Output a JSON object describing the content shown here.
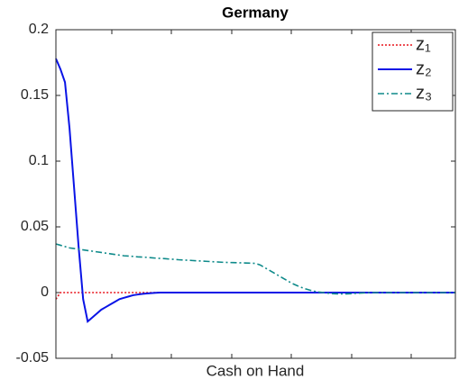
{
  "chart_data": {
    "type": "line",
    "title": "Germany",
    "xlabel": "Cash on Hand",
    "categories": [
      null,
      null,
      null,
      null,
      null,
      null,
      null,
      null,
      null,
      null,
      null,
      null,
      null,
      null,
      null,
      null,
      null,
      null,
      null,
      null,
      null,
      null,
      null,
      null,
      null,
      null,
      null,
      null,
      null,
      null,
      null,
      null,
      null,
      null,
      null,
      null,
      null,
      null,
      null,
      null,
      null,
      null,
      null,
      null,
      null,
      null,
      null,
      null,
      null,
      null,
      null,
      null,
      null,
      null,
      null,
      null,
      null,
      null,
      null,
      null,
      null,
      null,
      null,
      null,
      null,
      null,
      null,
      null,
      null,
      null,
      null,
      null,
      null,
      null,
      null,
      null,
      null,
      null,
      null,
      null,
      null,
      null,
      null,
      null,
      null,
      null,
      null,
      null,
      null
    ],
    "series": [
      {
        "name": "z₁",
        "color": "#e8141c",
        "dash": "dotted",
        "values": [
          -0.005,
          0,
          0,
          0,
          0,
          0,
          0,
          0,
          0,
          0,
          0,
          0,
          0,
          0,
          0,
          0,
          0,
          0,
          0,
          0,
          0,
          0,
          0,
          0,
          0,
          0,
          0,
          0,
          0,
          0,
          0,
          0,
          0,
          0,
          0,
          0,
          0,
          0,
          0,
          0,
          0,
          0,
          0,
          0,
          0,
          0,
          0,
          0,
          0,
          0,
          0,
          0,
          0,
          0,
          0,
          0,
          0,
          0,
          0,
          0,
          0,
          0,
          0,
          0,
          0,
          0,
          0,
          0,
          0,
          0,
          0,
          0,
          0,
          0,
          0,
          0,
          0,
          0,
          0,
          0,
          0,
          0,
          0,
          0,
          0,
          0,
          0,
          0,
          0
        ]
      },
      {
        "name": "z₂",
        "color": "#0a14e6",
        "dash": "solid",
        "values": [
          0.178,
          0.17,
          0.16,
          0.125,
          0.08,
          0.035,
          -0.005,
          -0.022,
          -0.019,
          -0.016,
          -0.013,
          -0.011,
          -0.009,
          -0.007,
          -0.005,
          -0.004,
          -0.003,
          -0.002,
          -0.0015,
          -0.001,
          -0.0007,
          -0.0004,
          -0.0002,
          0,
          0,
          0,
          0,
          0,
          0,
          0,
          0,
          0,
          0,
          0,
          0,
          0,
          0,
          0,
          0,
          0,
          0,
          0,
          0,
          0,
          0,
          0,
          0,
          0,
          0,
          0,
          0,
          0,
          0,
          0,
          0,
          0,
          0,
          0,
          0,
          0,
          0,
          0,
          0,
          0,
          0,
          0,
          0,
          0,
          0,
          0,
          0,
          0,
          0,
          0,
          0,
          0,
          0,
          0,
          0,
          0,
          0,
          0,
          0,
          0,
          0,
          0,
          0,
          0,
          0
        ]
      },
      {
        "name": "z₃",
        "color": "#0e8a8a",
        "dash": "dashdot",
        "values": [
          0.037,
          0.036,
          0.035,
          0.034,
          0.0335,
          0.033,
          0.0325,
          0.032,
          0.0315,
          0.031,
          0.0305,
          0.03,
          0.0295,
          0.029,
          0.0285,
          0.028,
          0.0278,
          0.0275,
          0.0272,
          0.027,
          0.0268,
          0.0265,
          0.0262,
          0.026,
          0.0258,
          0.0255,
          0.0253,
          0.025,
          0.0248,
          0.0246,
          0.0244,
          0.0242,
          0.024,
          0.0238,
          0.0236,
          0.0234,
          0.0232,
          0.023,
          0.0229,
          0.0228,
          0.0227,
          0.0226,
          0.0225,
          0.0224,
          0.0222,
          0.021,
          0.019,
          0.017,
          0.015,
          0.013,
          0.011,
          0.009,
          0.007,
          0.0055,
          0.004,
          0.0028,
          0.0018,
          0.001,
          0.0004,
          0,
          -0.0005,
          -0.0008,
          -0.001,
          -0.001,
          -0.001,
          -0.0008,
          -0.0006,
          -0.0004,
          -0.0002,
          0,
          0,
          0,
          0,
          0,
          0,
          0,
          0,
          0,
          0,
          0,
          0,
          0,
          0,
          0,
          0,
          0,
          0,
          0,
          0
        ]
      }
    ],
    "ylim": [
      -0.05,
      0.2
    ],
    "yticks": [
      -0.05,
      0,
      0.05,
      0.1,
      0.15,
      0.2
    ],
    "legend": "top-right"
  }
}
